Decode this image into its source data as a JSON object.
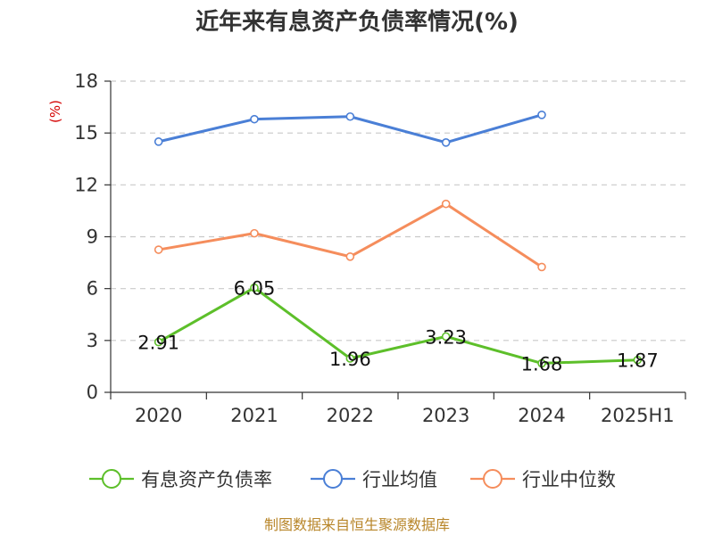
{
  "chart_data": {
    "type": "line",
    "title": "近年来有息资产负债率情况(%)",
    "unit_label": "(%)",
    "categories": [
      "2020",
      "2021",
      "2022",
      "2023",
      "2024",
      "2025H1"
    ],
    "ylim": [
      0,
      18
    ],
    "yticks": [
      0,
      3,
      6,
      9,
      12,
      15,
      18
    ],
    "grid": true,
    "legend_position": "bottom",
    "series": [
      {
        "name": "有息资产负债率",
        "color": "#5dbf2a",
        "values": [
          2.91,
          6.05,
          1.96,
          3.23,
          1.68,
          1.87
        ],
        "labels": [
          "2.91",
          "6.05",
          "1.96",
          "3.23",
          "1.68",
          "1.87"
        ]
      },
      {
        "name": "行业均值",
        "color": "#4a7fd6",
        "values": [
          14.5,
          15.8,
          15.95,
          14.45,
          16.05,
          null
        ]
      },
      {
        "name": "行业中位数",
        "color": "#f58d5c",
        "values": [
          8.25,
          9.2,
          7.85,
          10.9,
          7.25,
          null
        ]
      }
    ],
    "source": "制图数据来自恒生聚源数据库"
  }
}
